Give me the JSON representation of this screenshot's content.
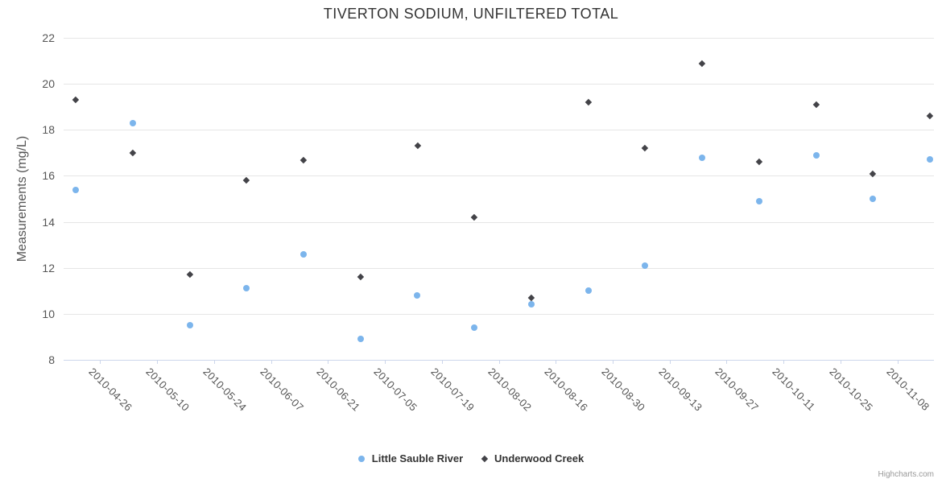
{
  "chart_data": {
    "type": "scatter",
    "title": "TIVERTON SODIUM, UNFILTERED TOTAL",
    "xlabel": "",
    "ylabel": "Measurements (mg/L)",
    "ylim": [
      8,
      22
    ],
    "y_ticks": [
      8,
      10,
      12,
      14,
      16,
      18,
      20,
      22
    ],
    "x_range": [
      "2010-04-17",
      "2010-11-17"
    ],
    "x_tick_labels": [
      "2010-04-26",
      "2010-05-10",
      "2010-05-24",
      "2010-06-07",
      "2010-06-21",
      "2010-07-05",
      "2010-07-19",
      "2010-08-02",
      "2010-08-16",
      "2010-08-30",
      "2010-09-13",
      "2010-09-27",
      "2010-10-11",
      "2010-10-25",
      "2010-11-08"
    ],
    "grid": true,
    "legend_position": "bottom-center",
    "x": [
      "2010-04-20",
      "2010-05-04",
      "2010-05-18",
      "2010-06-01",
      "2010-06-15",
      "2010-06-29",
      "2010-07-13",
      "2010-07-27",
      "2010-08-10",
      "2010-08-24",
      "2010-09-07",
      "2010-09-21",
      "2010-10-05",
      "2010-10-19",
      "2010-11-02",
      "2010-11-16"
    ],
    "series": [
      {
        "name": "Little Sauble River",
        "marker": "circle",
        "color": "#7cb5ec",
        "values": [
          15.4,
          18.3,
          9.5,
          11.1,
          12.6,
          8.9,
          10.8,
          9.4,
          10.4,
          11.0,
          12.1,
          16.8,
          14.9,
          16.9,
          15.0,
          16.7
        ]
      },
      {
        "name": "Underwood Creek",
        "marker": "diamond",
        "color": "#434348",
        "values": [
          19.3,
          17.0,
          11.7,
          15.8,
          16.7,
          11.6,
          17.3,
          14.2,
          10.7,
          19.2,
          17.2,
          20.9,
          16.6,
          19.1,
          16.1,
          18.6
        ]
      }
    ]
  },
  "credit": {
    "label": "Highcharts.com"
  },
  "colors": {
    "grid": "#e6e6e6",
    "axis_line": "#ccd6eb",
    "title_text": "#333333",
    "axis_label_text": "#555555",
    "legend_text": "#333333",
    "credit_text": "#999999",
    "series_blue": "#7cb5ec",
    "series_dark": "#434348"
  }
}
